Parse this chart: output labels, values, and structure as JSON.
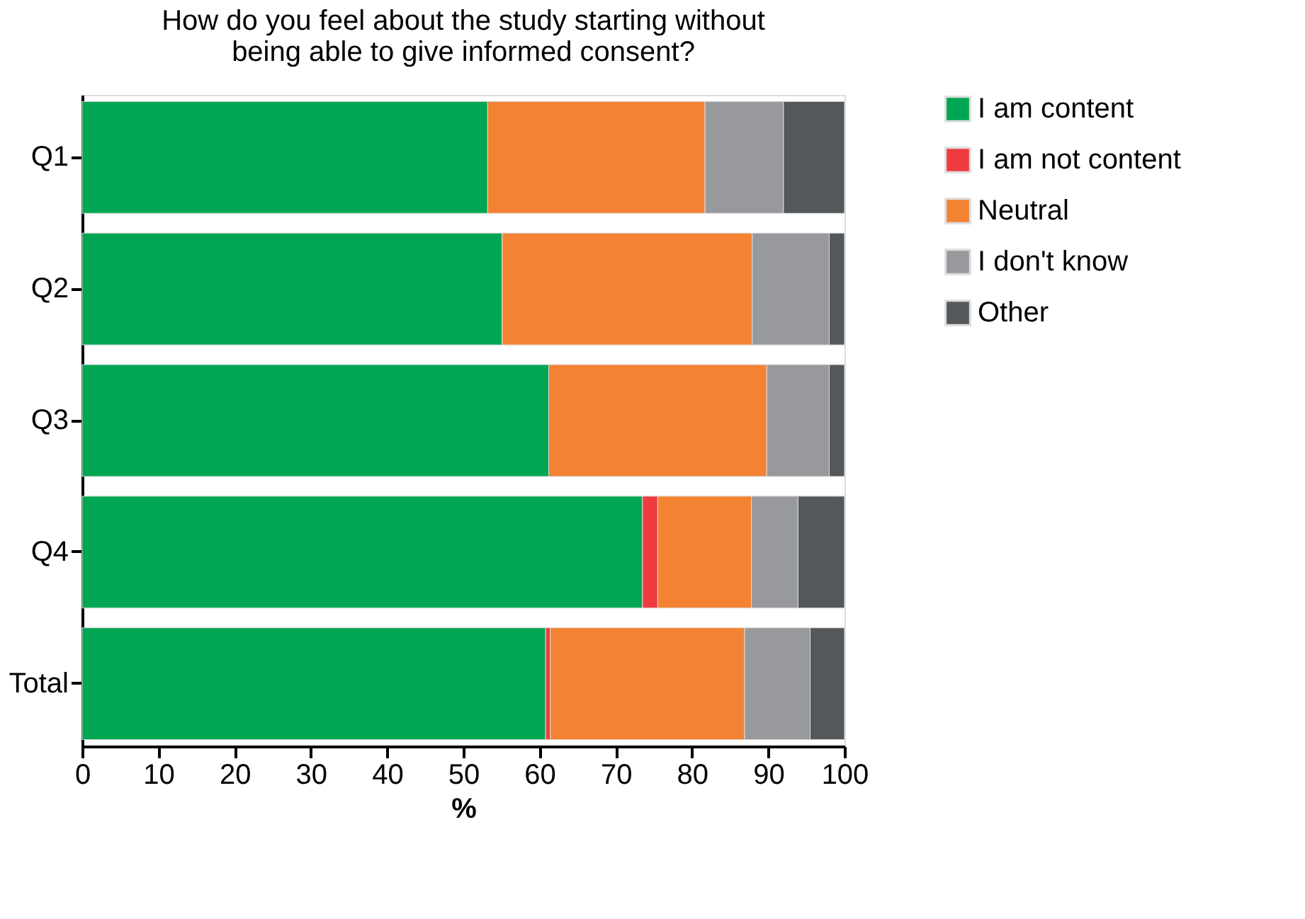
{
  "chart_data": {
    "type": "bar",
    "orientation": "horizontal",
    "stacked": true,
    "title": [
      "How do you feel about the study starting without",
      "being able to give informed consent?"
    ],
    "xlabel": "%",
    "categories": [
      "Q1",
      "Q2",
      "Q3",
      "Q4",
      "Total"
    ],
    "series": [
      {
        "name": "I am content",
        "color": "#00a651",
        "values": [
          53.2,
          55.1,
          61.2,
          73.5,
          60.8
        ]
      },
      {
        "name": "I am not content",
        "color": "#ee3b3f",
        "values": [
          0,
          0,
          0,
          2.0,
          0.6
        ]
      },
      {
        "name": "Neutral",
        "color": "#f38233",
        "values": [
          28.5,
          32.8,
          28.6,
          12.3,
          25.5
        ]
      },
      {
        "name": "I don't know",
        "color": "#97999c",
        "values": [
          10.3,
          10.1,
          8.2,
          6.1,
          8.6
        ]
      },
      {
        "name": "Other",
        "color": "#54585a",
        "values": [
          8.0,
          2.0,
          2.0,
          6.1,
          4.5
        ]
      }
    ],
    "xlim": [
      0,
      100
    ],
    "xticks": [
      0,
      10,
      20,
      30,
      40,
      50,
      60,
      70,
      80,
      90,
      100
    ],
    "grid": false,
    "legend": "top right"
  }
}
